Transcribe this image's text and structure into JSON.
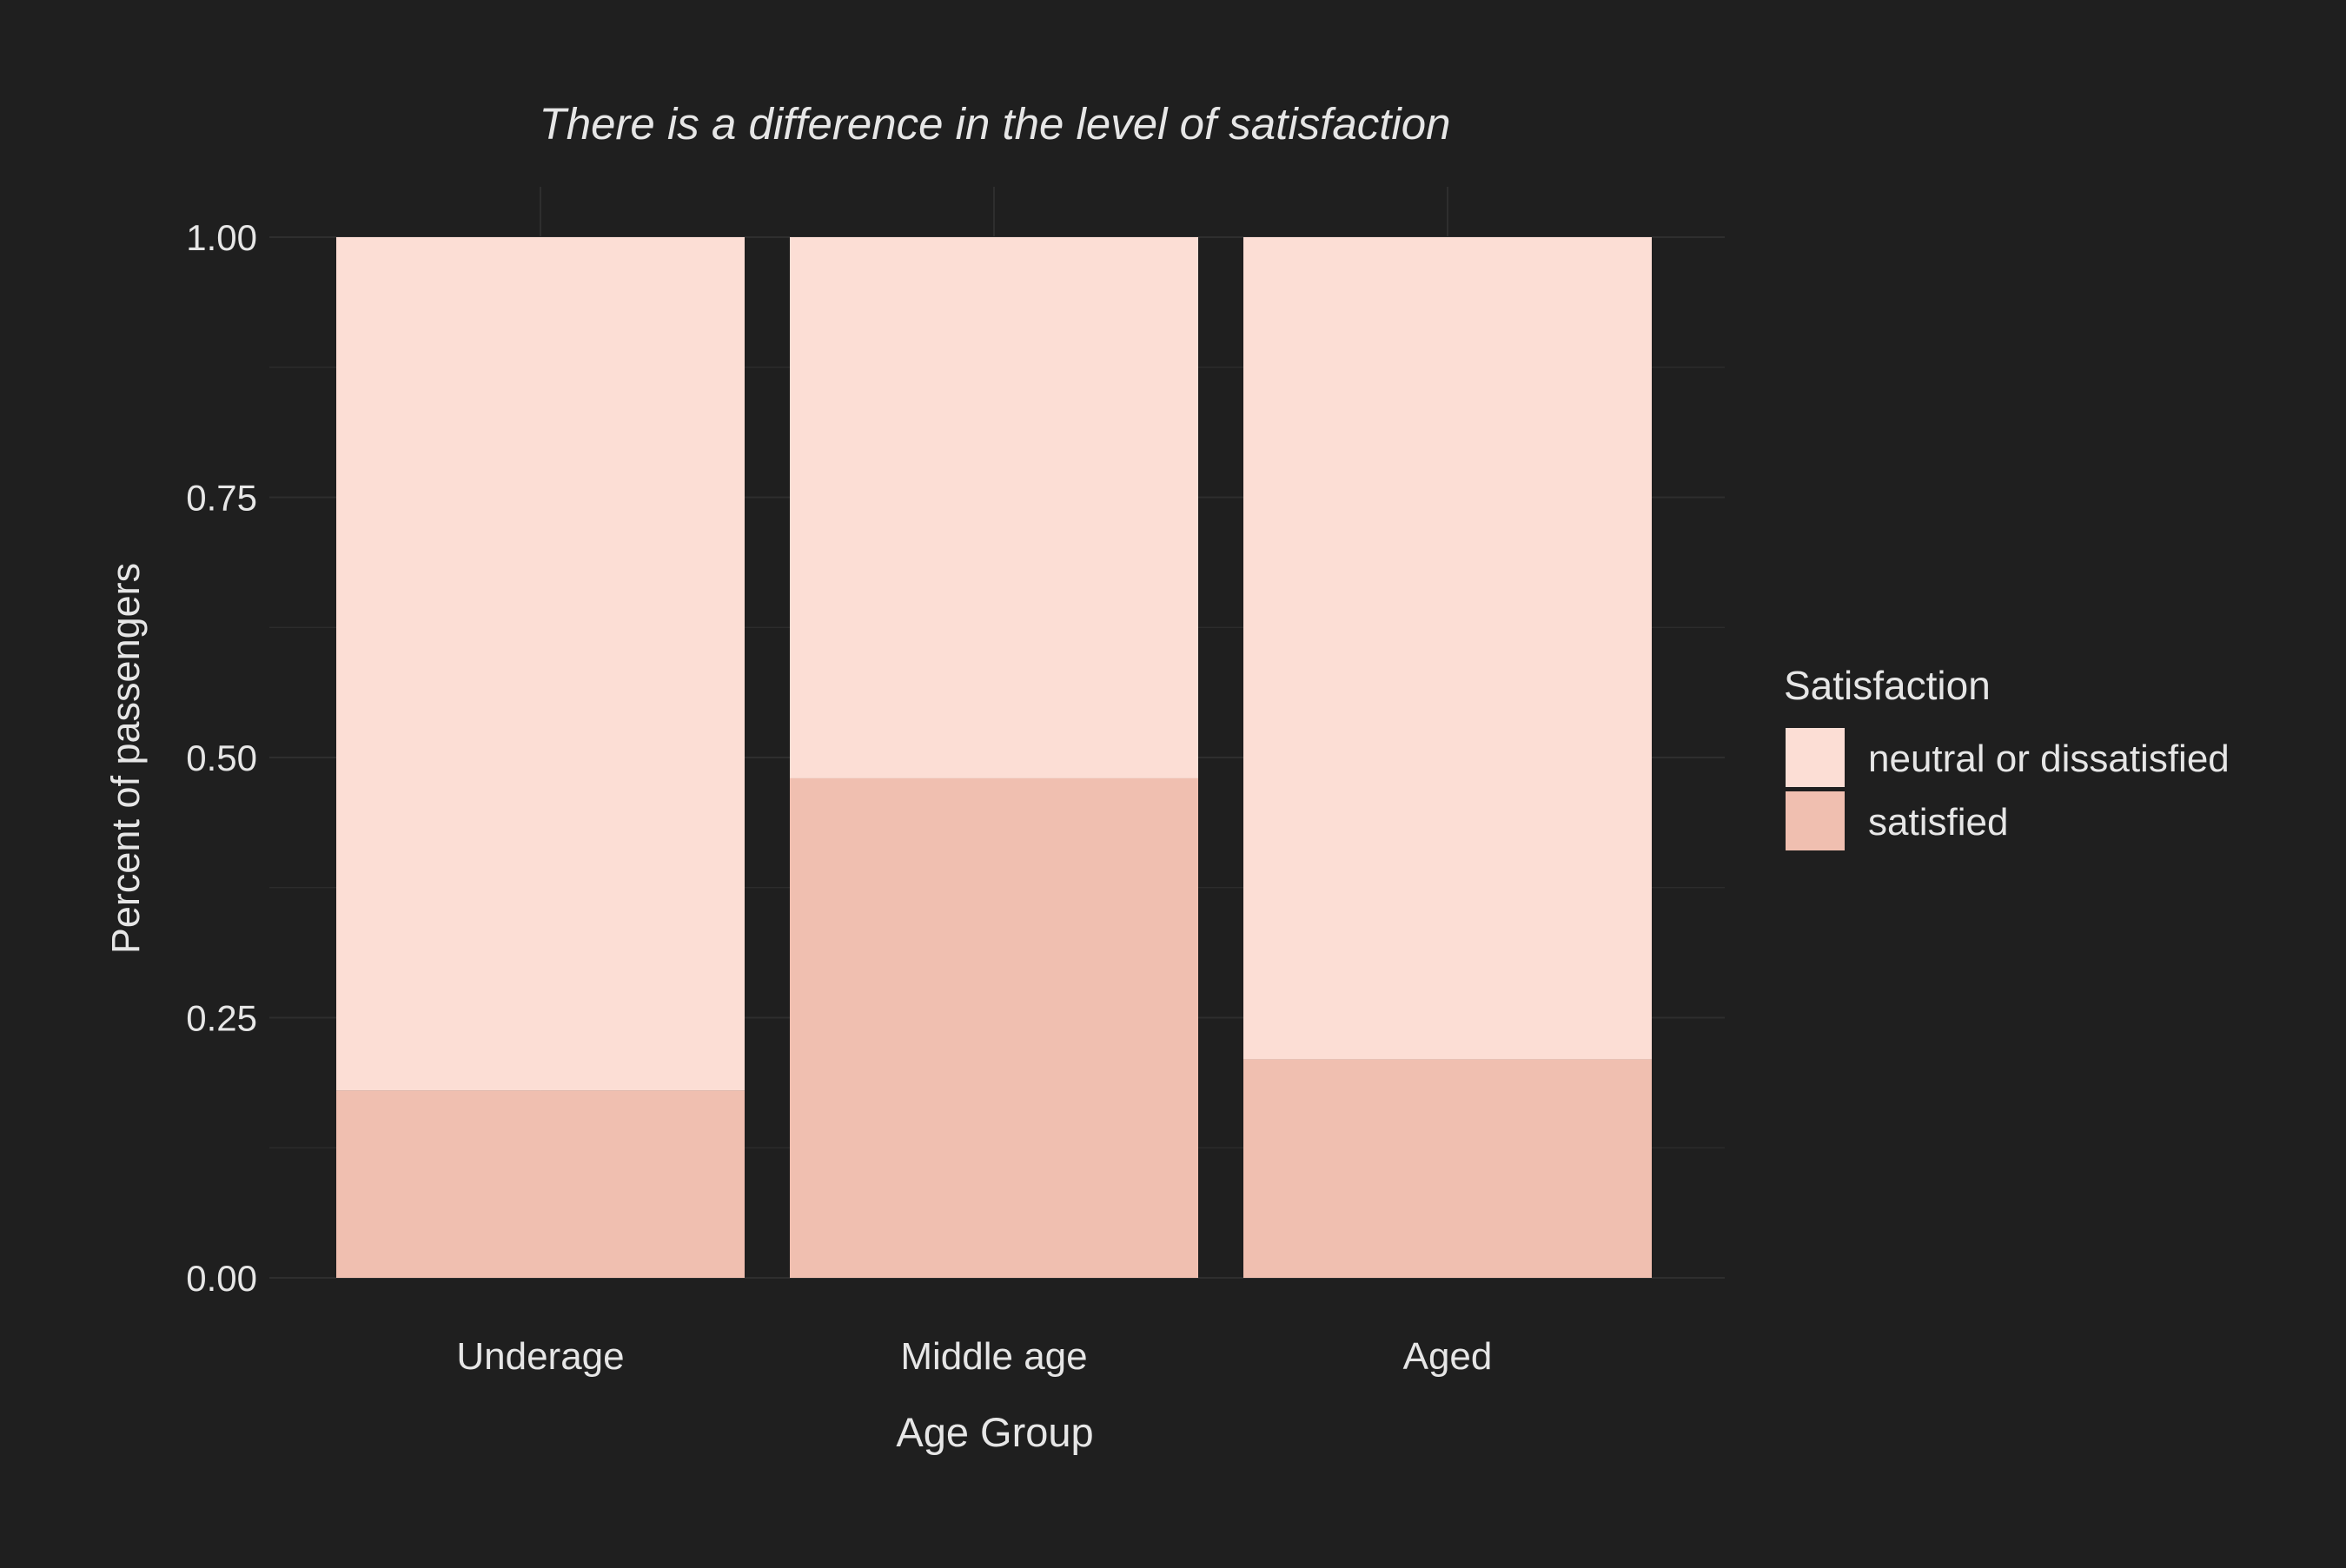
{
  "chart_data": {
    "type": "bar",
    "stacked": true,
    "title": "There is a difference in the level of satisfaction",
    "xlabel": "Age Group",
    "ylabel": "Percent of passengers",
    "categories": [
      "Underage",
      "Middle age",
      "Aged"
    ],
    "series": [
      {
        "name": "satisfied",
        "values": [
          0.18,
          0.48,
          0.21
        ],
        "color": "#f0bfb0"
      },
      {
        "name": "neutral or dissatisfied",
        "values": [
          0.82,
          0.52,
          0.79
        ],
        "color": "#fcded5"
      }
    ],
    "ylim": [
      0,
      1
    ],
    "yticks": [
      "0.00",
      "0.25",
      "0.50",
      "0.75",
      "1.00"
    ],
    "grid": true,
    "legend": {
      "title": "Satisfaction",
      "position": "right",
      "entries": [
        "neutral or dissatisfied",
        "satisfied"
      ]
    },
    "colors": {
      "background": "#1f1f1f",
      "grid": "#2e2e2e",
      "text": "#e6e6e6"
    }
  }
}
